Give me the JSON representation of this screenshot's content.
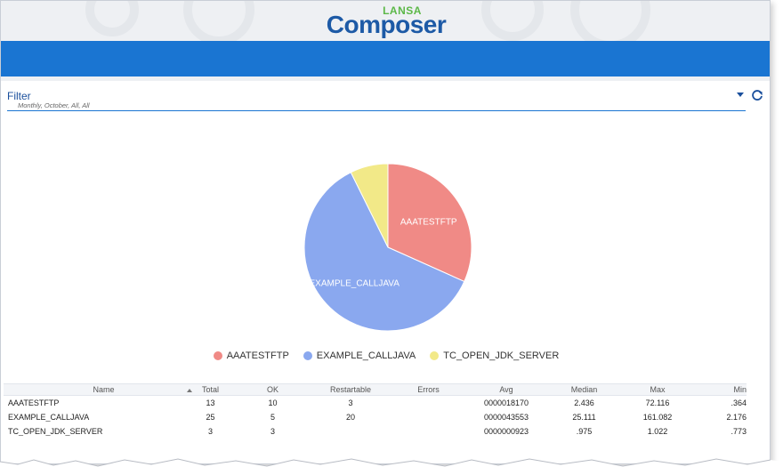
{
  "header": {
    "logo_top": "LANSA",
    "logo_main": "Composer"
  },
  "filter": {
    "label": "Filter",
    "summary": "Monthly,  October,  All, All",
    "dropdown_icon": "caret-down-icon",
    "refresh_icon": "refresh-icon"
  },
  "chart_data": {
    "type": "pie",
    "title": "",
    "labels": [
      "AAATESTFTP",
      "EXAMPLE_CALLJAVA",
      "TC_OPEN_JDK_SERVER"
    ],
    "values": [
      13,
      25,
      3
    ],
    "colors": [
      "#f08a86",
      "#8aa8ef",
      "#f2e988"
    ],
    "slice_labels_shown": [
      "AAATESTFTP",
      "EXAMPLE_CALLJAVA"
    ],
    "legend_position": "bottom"
  },
  "legend": {
    "items": [
      {
        "label": "AAATESTFTP",
        "color": "#f08a86"
      },
      {
        "label": "EXAMPLE_CALLJAVA",
        "color": "#8aa8ef"
      },
      {
        "label": "TC_OPEN_JDK_SERVER",
        "color": "#f2e988"
      }
    ]
  },
  "table": {
    "columns": [
      "Name",
      "Total",
      "OK",
      "Restartable",
      "Errors",
      "Avg",
      "Median",
      "Max",
      "Min"
    ],
    "sort_column": "Name",
    "rows": [
      [
        "AAATESTFTP",
        "13",
        "10",
        "3",
        "",
        "0000018170",
        "2.436",
        "72.116",
        ".364"
      ],
      [
        "EXAMPLE_CALLJAVA",
        "25",
        "5",
        "20",
        "",
        "0000043553",
        "25.111",
        "161.082",
        "2.176"
      ],
      [
        "TC_OPEN_JDK_SERVER",
        "3",
        "3",
        "",
        "",
        "0000000923",
        ".975",
        "1.022",
        ".773"
      ]
    ]
  }
}
